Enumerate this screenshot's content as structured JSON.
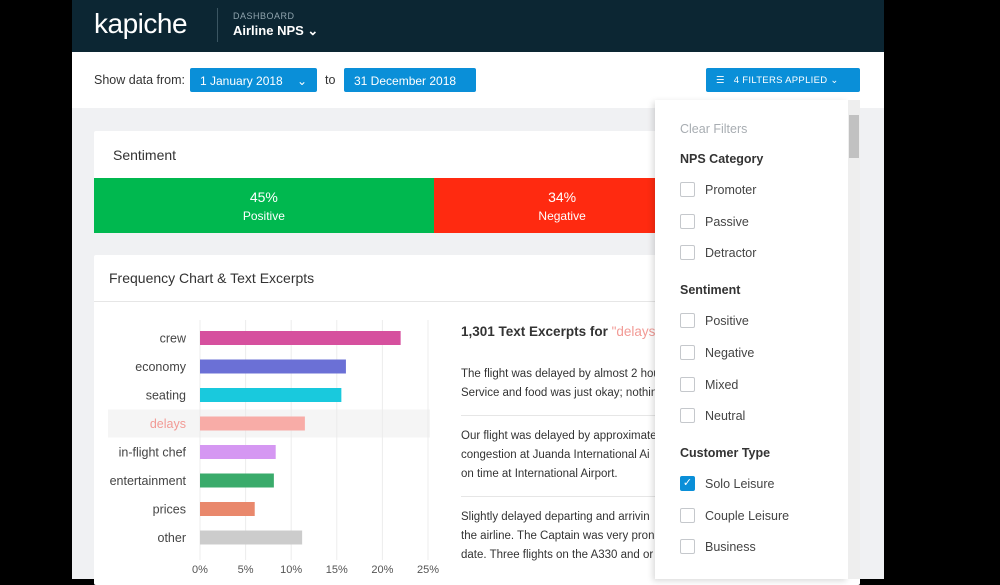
{
  "header": {
    "logo": "kapiche",
    "section": "DASHBOARD",
    "dashboard": "Airline NPS"
  },
  "toolbar": {
    "show_label": "Show data from:",
    "date_from": "1 January 2018",
    "to_label": "to",
    "date_to": "31 December 2018",
    "filters_button": "4 FILTERS APPLIED"
  },
  "sentiment": {
    "title": "Sentiment",
    "segments": [
      {
        "name": "Positive",
        "value": 45,
        "value_label": "45%",
        "color": "#00b84f"
      },
      {
        "name": "Negative",
        "value": 34,
        "value_label": "34%",
        "color": "#ff2a10"
      }
    ]
  },
  "frequency": {
    "title": "Frequency Chart & Text Excerpts",
    "chart": {
      "type": "bar",
      "orientation": "horizontal",
      "categories": [
        "crew",
        "economy",
        "seating",
        "delays",
        "in-flight chef",
        "entertainment",
        "prices",
        "other"
      ],
      "values": [
        22,
        16,
        15.5,
        11.5,
        8.3,
        8.1,
        6,
        11.2
      ],
      "colors": [
        "#d6509e",
        "#6b70d6",
        "#19c9dd",
        "#f8aca7",
        "#d597f2",
        "#3aab6b",
        "#e9886c",
        "#cccccc"
      ],
      "highlight": "delays",
      "xlim": [
        0,
        25
      ],
      "xticks": [
        {
          "value": 0,
          "label": "0%"
        },
        {
          "value": 5,
          "label": "5%"
        },
        {
          "value": 10,
          "label": "10%"
        },
        {
          "value": 15,
          "label": "15%"
        },
        {
          "value": 20,
          "label": "20%"
        },
        {
          "value": 25,
          "label": "25%"
        }
      ],
      "grid": true
    },
    "excerpts_title": "1,301 Text Excerpts for",
    "excerpts_term": "\"delays",
    "excerpts": [
      [
        "The flight was delayed by almost 2 hou",
        "Service and food was just okay; nothin"
      ],
      [
        "Our flight was delayed by approximate",
        "congestion at Juanda International Ai",
        "on time at International Airport."
      ],
      [
        "Slightly delayed departing and arrivin",
        "the airline. The Captain was very pron",
        "date. Three flights on the A330 and or"
      ]
    ]
  },
  "filter_panel": {
    "clear": "Clear Filters",
    "groups": [
      {
        "title": "NPS Category",
        "options": [
          {
            "label": "Promoter",
            "checked": false
          },
          {
            "label": "Passive",
            "checked": false
          },
          {
            "label": "Detractor",
            "checked": false
          }
        ]
      },
      {
        "title": "Sentiment",
        "options": [
          {
            "label": "Positive",
            "checked": false
          },
          {
            "label": "Negative",
            "checked": false
          },
          {
            "label": "Mixed",
            "checked": false
          },
          {
            "label": "Neutral",
            "checked": false
          }
        ]
      },
      {
        "title": "Customer Type",
        "options": [
          {
            "label": "Solo Leisure",
            "checked": true
          },
          {
            "label": "Couple Leisure",
            "checked": false
          },
          {
            "label": "Business",
            "checked": false
          }
        ]
      }
    ]
  }
}
